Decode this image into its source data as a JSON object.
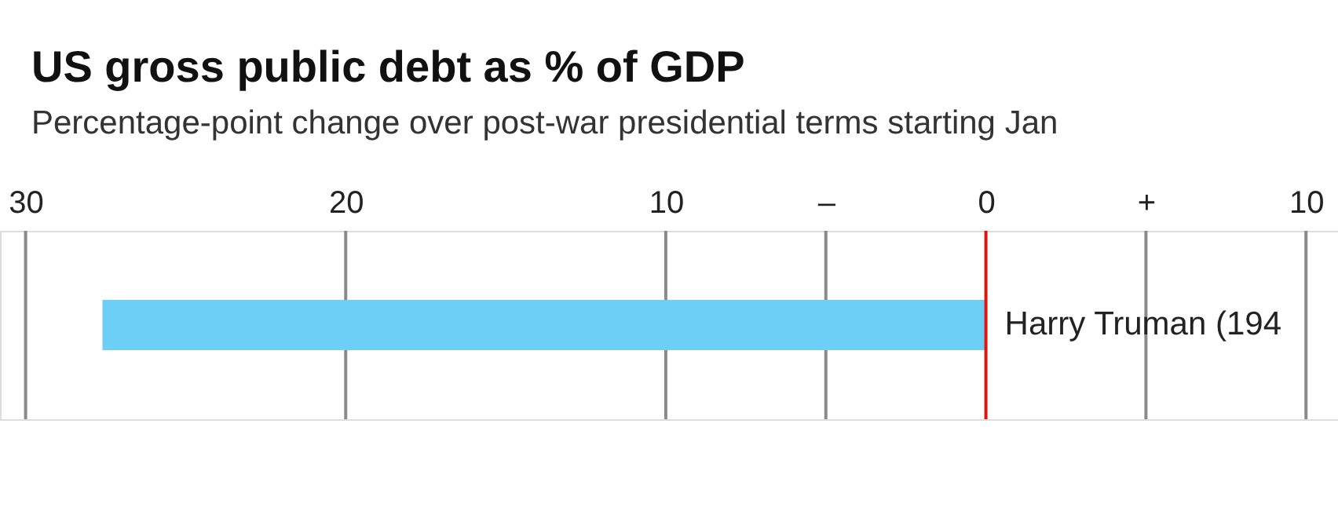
{
  "chart_data": {
    "type": "bar",
    "orientation": "horizontal",
    "title": "US gross public debt as % of GDP",
    "subtitle": "Percentage-point change over post-war presidential terms starting Jan",
    "categories": [
      "Harry Truman (194"
    ],
    "values": [
      -27.6
    ],
    "color": "#6dcff6",
    "xlim": [
      -30.8,
      11
    ],
    "xticks": [
      {
        "value": -30,
        "label": "30"
      },
      {
        "value": -20,
        "label": "20"
      },
      {
        "value": -10,
        "label": "10"
      },
      {
        "value": -5,
        "label": "–"
      },
      0,
      {
        "value": 5,
        "label": "+"
      },
      10
    ],
    "grid": "x"
  }
}
